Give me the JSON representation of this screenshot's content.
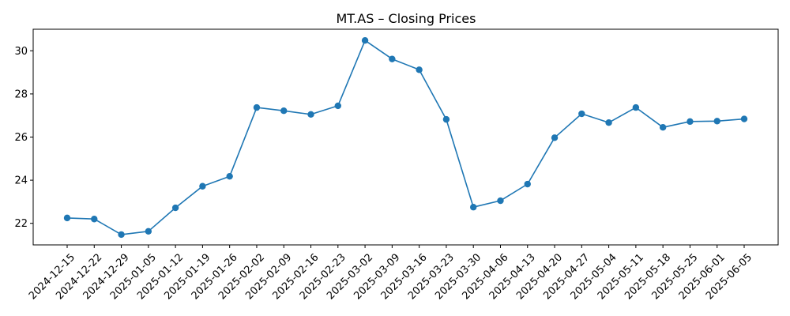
{
  "chart_data": {
    "type": "line",
    "title": "MT.AS – Closing Prices",
    "xlabel": "",
    "ylabel": "",
    "ylim": [
      21,
      31
    ],
    "yticks": [
      22,
      24,
      26,
      28,
      30
    ],
    "grid": false,
    "legend": "none",
    "series": [
      {
        "color": "#1f77b4",
        "marker": "circle",
        "x": [
          "2024-12-15",
          "2024-12-22",
          "2024-12-29",
          "2025-01-05",
          "2025-01-12",
          "2025-01-19",
          "2025-01-26",
          "2025-02-02",
          "2025-02-09",
          "2025-02-16",
          "2025-02-23",
          "2025-03-02",
          "2025-03-09",
          "2025-03-16",
          "2025-03-23",
          "2025-03-30",
          "2025-04-06",
          "2025-04-13",
          "2025-04-20",
          "2025-04-27",
          "2025-05-04",
          "2025-05-11",
          "2025-05-18",
          "2025-05-25",
          "2025-06-01",
          "2025-06-05"
        ],
        "values": [
          22.25,
          22.2,
          21.48,
          21.63,
          22.72,
          23.72,
          24.18,
          27.37,
          27.22,
          27.05,
          27.45,
          30.48,
          29.62,
          29.12,
          26.82,
          22.75,
          23.05,
          23.82,
          25.97,
          27.08,
          26.67,
          27.37,
          26.45,
          26.72,
          26.74,
          26.84
        ]
      }
    ]
  }
}
